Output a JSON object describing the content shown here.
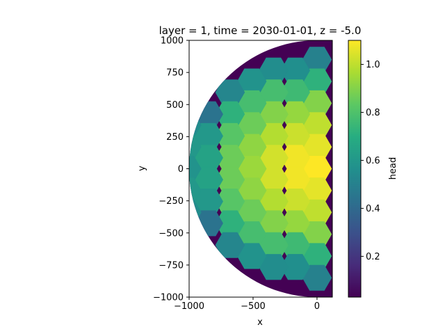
{
  "chart_data": {
    "type": "heatmap",
    "title": "layer = 1, time = 2030-01-01, z = -5.0",
    "xlabel": "x",
    "ylabel": "y",
    "xlim": [
      -1000,
      120
    ],
    "ylim": [
      -1000,
      1000
    ],
    "xticks": [
      -1000,
      -500,
      0
    ],
    "xtick_labels": [
      "−1000",
      "−500",
      "0"
    ],
    "yticks": [
      1000,
      750,
      500,
      250,
      0,
      -250,
      -500,
      -750,
      -1000
    ],
    "ytick_labels": [
      "1000",
      "750",
      "500",
      "250",
      "0",
      "−250",
      "−500",
      "−750",
      "−1000"
    ],
    "colorbar": {
      "label": "head",
      "colormap": "viridis",
      "vmin": 0.03,
      "vmax": 1.1,
      "ticks": [
        0.2,
        0.4,
        0.6,
        0.8,
        1.0
      ],
      "tick_labels": [
        "0.2",
        "0.4",
        "0.6",
        "0.8",
        "1.0"
      ]
    },
    "domain_boundary": "semicircle radius 1000 centred at (0, 0), x ≤ 0",
    "boundary_value": 0.03,
    "cells": [
      {
        "x": 0,
        "y": 850,
        "head": 0.5
      },
      {
        "x": 0,
        "y": 680,
        "head": 0.72
      },
      {
        "x": 0,
        "y": 510,
        "head": 0.9
      },
      {
        "x": 0,
        "y": 340,
        "head": 1.0
      },
      {
        "x": 0,
        "y": 170,
        "head": 1.06
      },
      {
        "x": 0,
        "y": 0,
        "head": 1.1
      },
      {
        "x": 0,
        "y": -170,
        "head": 1.06
      },
      {
        "x": 0,
        "y": -340,
        "head": 1.0
      },
      {
        "x": 0,
        "y": -510,
        "head": 0.9
      },
      {
        "x": 0,
        "y": -680,
        "head": 0.72
      },
      {
        "x": 0,
        "y": -850,
        "head": 0.5
      },
      {
        "x": -170,
        "y": 765,
        "head": 0.56
      },
      {
        "x": -170,
        "y": 595,
        "head": 0.76
      },
      {
        "x": -170,
        "y": 425,
        "head": 0.93
      },
      {
        "x": -170,
        "y": 255,
        "head": 1.02
      },
      {
        "x": -170,
        "y": 85,
        "head": 1.08
      },
      {
        "x": -170,
        "y": -85,
        "head": 1.08
      },
      {
        "x": -170,
        "y": -255,
        "head": 1.02
      },
      {
        "x": -170,
        "y": -425,
        "head": 0.93
      },
      {
        "x": -170,
        "y": -595,
        "head": 0.76
      },
      {
        "x": -170,
        "y": -765,
        "head": 0.56
      },
      {
        "x": -340,
        "y": 765,
        "head": 0.55
      },
      {
        "x": -340,
        "y": 595,
        "head": 0.78
      },
      {
        "x": -340,
        "y": 425,
        "head": 0.9
      },
      {
        "x": -340,
        "y": 255,
        "head": 0.98
      },
      {
        "x": -340,
        "y": 85,
        "head": 1.03
      },
      {
        "x": -340,
        "y": -85,
        "head": 1.03
      },
      {
        "x": -340,
        "y": -255,
        "head": 0.98
      },
      {
        "x": -340,
        "y": -425,
        "head": 0.9
      },
      {
        "x": -340,
        "y": -595,
        "head": 0.78
      },
      {
        "x": -340,
        "y": -765,
        "head": 0.55
      },
      {
        "x": -510,
        "y": 680,
        "head": 0.58
      },
      {
        "x": -510,
        "y": 510,
        "head": 0.78
      },
      {
        "x": -510,
        "y": 340,
        "head": 0.86
      },
      {
        "x": -510,
        "y": 170,
        "head": 0.92
      },
      {
        "x": -510,
        "y": 0,
        "head": 0.94
      },
      {
        "x": -510,
        "y": -170,
        "head": 0.92
      },
      {
        "x": -510,
        "y": -340,
        "head": 0.86
      },
      {
        "x": -510,
        "y": -510,
        "head": 0.78
      },
      {
        "x": -510,
        "y": -680,
        "head": 0.58
      },
      {
        "x": -680,
        "y": 595,
        "head": 0.52
      },
      {
        "x": -680,
        "y": 425,
        "head": 0.72
      },
      {
        "x": -680,
        "y": 255,
        "head": 0.82
      },
      {
        "x": -680,
        "y": 85,
        "head": 0.86
      },
      {
        "x": -680,
        "y": -85,
        "head": 0.86
      },
      {
        "x": -680,
        "y": -255,
        "head": 0.82
      },
      {
        "x": -680,
        "y": -425,
        "head": 0.72
      },
      {
        "x": -680,
        "y": -595,
        "head": 0.52
      },
      {
        "x": -850,
        "y": 425,
        "head": 0.44
      },
      {
        "x": -850,
        "y": 255,
        "head": 0.6
      },
      {
        "x": -850,
        "y": 85,
        "head": 0.65
      },
      {
        "x": -850,
        "y": -85,
        "head": 0.65
      },
      {
        "x": -850,
        "y": -255,
        "head": 0.6
      },
      {
        "x": -850,
        "y": -425,
        "head": 0.44
      },
      {
        "x": -1020,
        "y": 340,
        "head": 0.55
      },
      {
        "x": -1020,
        "y": 170,
        "head": 0.6
      },
      {
        "x": -1020,
        "y": 0,
        "head": 0.58
      },
      {
        "x": -1020,
        "y": -170,
        "head": 0.6
      },
      {
        "x": -1020,
        "y": -340,
        "head": 0.55
      }
    ]
  }
}
